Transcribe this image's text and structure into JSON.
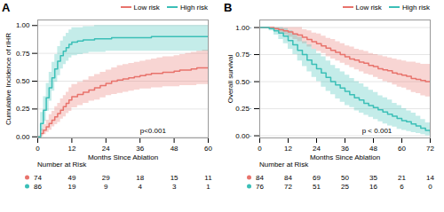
{
  "chart_data": [
    {
      "type": "step",
      "title": "A",
      "xlabel": "Months Since Ablation",
      "ylabel": "Cumulative Incidence of rIHR",
      "xlim": [
        0,
        60
      ],
      "ylim": [
        -0.01,
        1.05
      ],
      "xticks": [
        0,
        12,
        24,
        36,
        48,
        60
      ],
      "yticks": [
        {
          "value": 0.0,
          "label": "0.00"
        },
        {
          "value": 0.25,
          "label": "0.25"
        },
        {
          "value": 0.5,
          "label": "0.50"
        },
        {
          "value": 0.75,
          "label": "0.75"
        },
        {
          "value": 1.0,
          "label": "1.00"
        }
      ],
      "grid": true,
      "legend": "upper right",
      "annotation": "p<0.001",
      "at_risk_label": "Number at Risk",
      "at_risk_x": [
        0,
        12,
        24,
        36,
        48,
        60
      ],
      "x": [
        0,
        1,
        2,
        3,
        4,
        5,
        6,
        7,
        8,
        9,
        10,
        11,
        12,
        14,
        16,
        18,
        20,
        22,
        24,
        26,
        28,
        30,
        32,
        34,
        36,
        38,
        40,
        42,
        44,
        46,
        48,
        50,
        52,
        54,
        56,
        58,
        60
      ],
      "series": [
        {
          "name": "Low risk",
          "color": "#E8736C",
          "values": [
            0.0,
            0.03,
            0.06,
            0.09,
            0.12,
            0.15,
            0.18,
            0.21,
            0.24,
            0.27,
            0.3,
            0.33,
            0.36,
            0.38,
            0.4,
            0.42,
            0.44,
            0.46,
            0.48,
            0.5,
            0.51,
            0.52,
            0.53,
            0.54,
            0.55,
            0.56,
            0.57,
            0.57,
            0.58,
            0.58,
            0.59,
            0.6,
            0.6,
            0.61,
            0.62,
            0.62,
            0.62
          ],
          "lower": [
            0.0,
            0.0,
            0.02,
            0.04,
            0.06,
            0.09,
            0.11,
            0.13,
            0.16,
            0.18,
            0.21,
            0.23,
            0.26,
            0.28,
            0.3,
            0.32,
            0.33,
            0.35,
            0.37,
            0.38,
            0.39,
            0.4,
            0.41,
            0.42,
            0.43,
            0.43,
            0.44,
            0.44,
            0.45,
            0.45,
            0.45,
            0.46,
            0.46,
            0.46,
            0.47,
            0.47,
            0.47
          ],
          "upper": [
            0.0,
            0.07,
            0.11,
            0.15,
            0.2,
            0.23,
            0.27,
            0.3,
            0.34,
            0.37,
            0.4,
            0.44,
            0.47,
            0.49,
            0.51,
            0.54,
            0.56,
            0.58,
            0.6,
            0.62,
            0.64,
            0.65,
            0.66,
            0.67,
            0.68,
            0.69,
            0.7,
            0.71,
            0.72,
            0.72,
            0.73,
            0.74,
            0.75,
            0.76,
            0.77,
            0.78,
            0.78
          ],
          "at_risk": [
            74,
            49,
            29,
            18,
            15,
            11
          ]
        },
        {
          "name": "High risk",
          "color": "#3BBFB7",
          "values": [
            0.0,
            0.12,
            0.24,
            0.35,
            0.44,
            0.53,
            0.61,
            0.68,
            0.73,
            0.77,
            0.8,
            0.83,
            0.85,
            0.86,
            0.87,
            0.87,
            0.88,
            0.88,
            0.88,
            0.89,
            0.89,
            0.89,
            0.89,
            0.89,
            0.89,
            0.89,
            0.9,
            0.9,
            0.9,
            0.9,
            0.9,
            0.9,
            0.9,
            0.9,
            0.9,
            0.9,
            0.9
          ],
          "lower": [
            0.0,
            0.05,
            0.14,
            0.23,
            0.32,
            0.41,
            0.49,
            0.55,
            0.61,
            0.65,
            0.68,
            0.71,
            0.73,
            0.74,
            0.75,
            0.76,
            0.76,
            0.76,
            0.77,
            0.77,
            0.77,
            0.77,
            0.77,
            0.77,
            0.77,
            0.77,
            0.77,
            0.77,
            0.77,
            0.77,
            0.77,
            0.77,
            0.77,
            0.77,
            0.77,
            0.77,
            0.77
          ],
          "upper": [
            0.0,
            0.22,
            0.36,
            0.48,
            0.58,
            0.67,
            0.74,
            0.81,
            0.86,
            0.9,
            0.93,
            0.96,
            0.98,
            0.98,
            0.99,
            0.99,
            1.0,
            1.0,
            1.0,
            1.0,
            1.0,
            1.0,
            1.0,
            1.0,
            1.0,
            1.0,
            1.0,
            1.0,
            1.0,
            1.0,
            1.0,
            1.0,
            1.0,
            1.0,
            1.0,
            1.0,
            1.0
          ],
          "at_risk": [
            86,
            19,
            9,
            4,
            3,
            1
          ]
        }
      ]
    },
    {
      "type": "step",
      "title": "B",
      "xlabel": "Months Since Ablation",
      "ylabel": "Overall survival",
      "xlim": [
        0,
        72
      ],
      "ylim": [
        -0.02,
        1.07
      ],
      "xticks": [
        0,
        12,
        24,
        36,
        48,
        60,
        72
      ],
      "yticks": [
        {
          "value": 0.0,
          "label": "0.00·"
        },
        {
          "value": 0.25,
          "label": "0.25·"
        },
        {
          "value": 0.5,
          "label": "0.50·"
        },
        {
          "value": 0.75,
          "label": "0.75·"
        },
        {
          "value": 1.0,
          "label": "1.00·"
        }
      ],
      "grid": true,
      "legend": "upper right",
      "annotation": "p < 0.001",
      "at_risk_label": "Number at Risk",
      "at_risk_x": [
        0,
        12,
        24,
        36,
        48,
        60,
        72
      ],
      "x": [
        0,
        2,
        4,
        6,
        8,
        10,
        12,
        14,
        16,
        18,
        20,
        22,
        24,
        26,
        28,
        30,
        32,
        34,
        36,
        38,
        40,
        42,
        44,
        46,
        48,
        50,
        52,
        54,
        56,
        58,
        60,
        62,
        64,
        66,
        68,
        70,
        72
      ],
      "series": [
        {
          "name": "Low risk",
          "color": "#E8736C",
          "values": [
            1.0,
            1.0,
            1.0,
            0.99,
            0.98,
            0.97,
            0.96,
            0.94,
            0.93,
            0.91,
            0.89,
            0.87,
            0.85,
            0.83,
            0.81,
            0.79,
            0.77,
            0.75,
            0.73,
            0.71,
            0.7,
            0.68,
            0.67,
            0.65,
            0.64,
            0.62,
            0.61,
            0.6,
            0.58,
            0.57,
            0.56,
            0.55,
            0.53,
            0.52,
            0.51,
            0.5,
            0.5
          ],
          "lower": [
            1.0,
            1.0,
            1.0,
            0.97,
            0.95,
            0.93,
            0.91,
            0.89,
            0.87,
            0.85,
            0.82,
            0.8,
            0.78,
            0.76,
            0.73,
            0.71,
            0.69,
            0.67,
            0.65,
            0.63,
            0.61,
            0.59,
            0.57,
            0.56,
            0.54,
            0.52,
            0.5,
            0.49,
            0.47,
            0.45,
            0.44,
            0.42,
            0.4,
            0.39,
            0.37,
            0.36,
            0.34
          ],
          "upper": [
            1.0,
            1.0,
            1.0,
            1.0,
            1.0,
            1.0,
            1.0,
            1.0,
            1.0,
            0.98,
            0.97,
            0.95,
            0.94,
            0.92,
            0.9,
            0.89,
            0.87,
            0.85,
            0.83,
            0.82,
            0.8,
            0.79,
            0.78,
            0.76,
            0.75,
            0.74,
            0.73,
            0.72,
            0.71,
            0.7,
            0.69,
            0.68,
            0.68,
            0.67,
            0.66,
            0.66,
            0.66
          ],
          "at_risk": [
            84,
            84,
            69,
            50,
            35,
            21,
            14
          ]
        },
        {
          "name": "High risk",
          "color": "#3BBFB7",
          "values": [
            1.0,
            1.0,
            0.99,
            0.97,
            0.95,
            0.92,
            0.88,
            0.84,
            0.79,
            0.75,
            0.7,
            0.66,
            0.62,
            0.58,
            0.54,
            0.5,
            0.47,
            0.44,
            0.41,
            0.38,
            0.35,
            0.33,
            0.3,
            0.28,
            0.26,
            0.24,
            0.22,
            0.2,
            0.18,
            0.16,
            0.14,
            0.13,
            0.11,
            0.09,
            0.07,
            0.05,
            0.03
          ],
          "lower": [
            1.0,
            1.0,
            0.97,
            0.93,
            0.89,
            0.85,
            0.8,
            0.75,
            0.69,
            0.64,
            0.59,
            0.54,
            0.5,
            0.45,
            0.41,
            0.38,
            0.34,
            0.31,
            0.28,
            0.26,
            0.23,
            0.21,
            0.19,
            0.17,
            0.15,
            0.13,
            0.11,
            0.09,
            0.08,
            0.06,
            0.05,
            0.04,
            0.03,
            0.02,
            0.01,
            0.0,
            0.0
          ],
          "upper": [
            1.0,
            1.0,
            1.0,
            1.0,
            1.0,
            0.99,
            0.97,
            0.94,
            0.91,
            0.87,
            0.84,
            0.8,
            0.76,
            0.73,
            0.69,
            0.65,
            0.62,
            0.59,
            0.56,
            0.53,
            0.5,
            0.48,
            0.45,
            0.42,
            0.4,
            0.37,
            0.35,
            0.33,
            0.3,
            0.28,
            0.25,
            0.23,
            0.21,
            0.18,
            0.15,
            0.12,
            0.08
          ],
          "at_risk": [
            76,
            72,
            51,
            25,
            16,
            6,
            0
          ]
        }
      ]
    }
  ]
}
